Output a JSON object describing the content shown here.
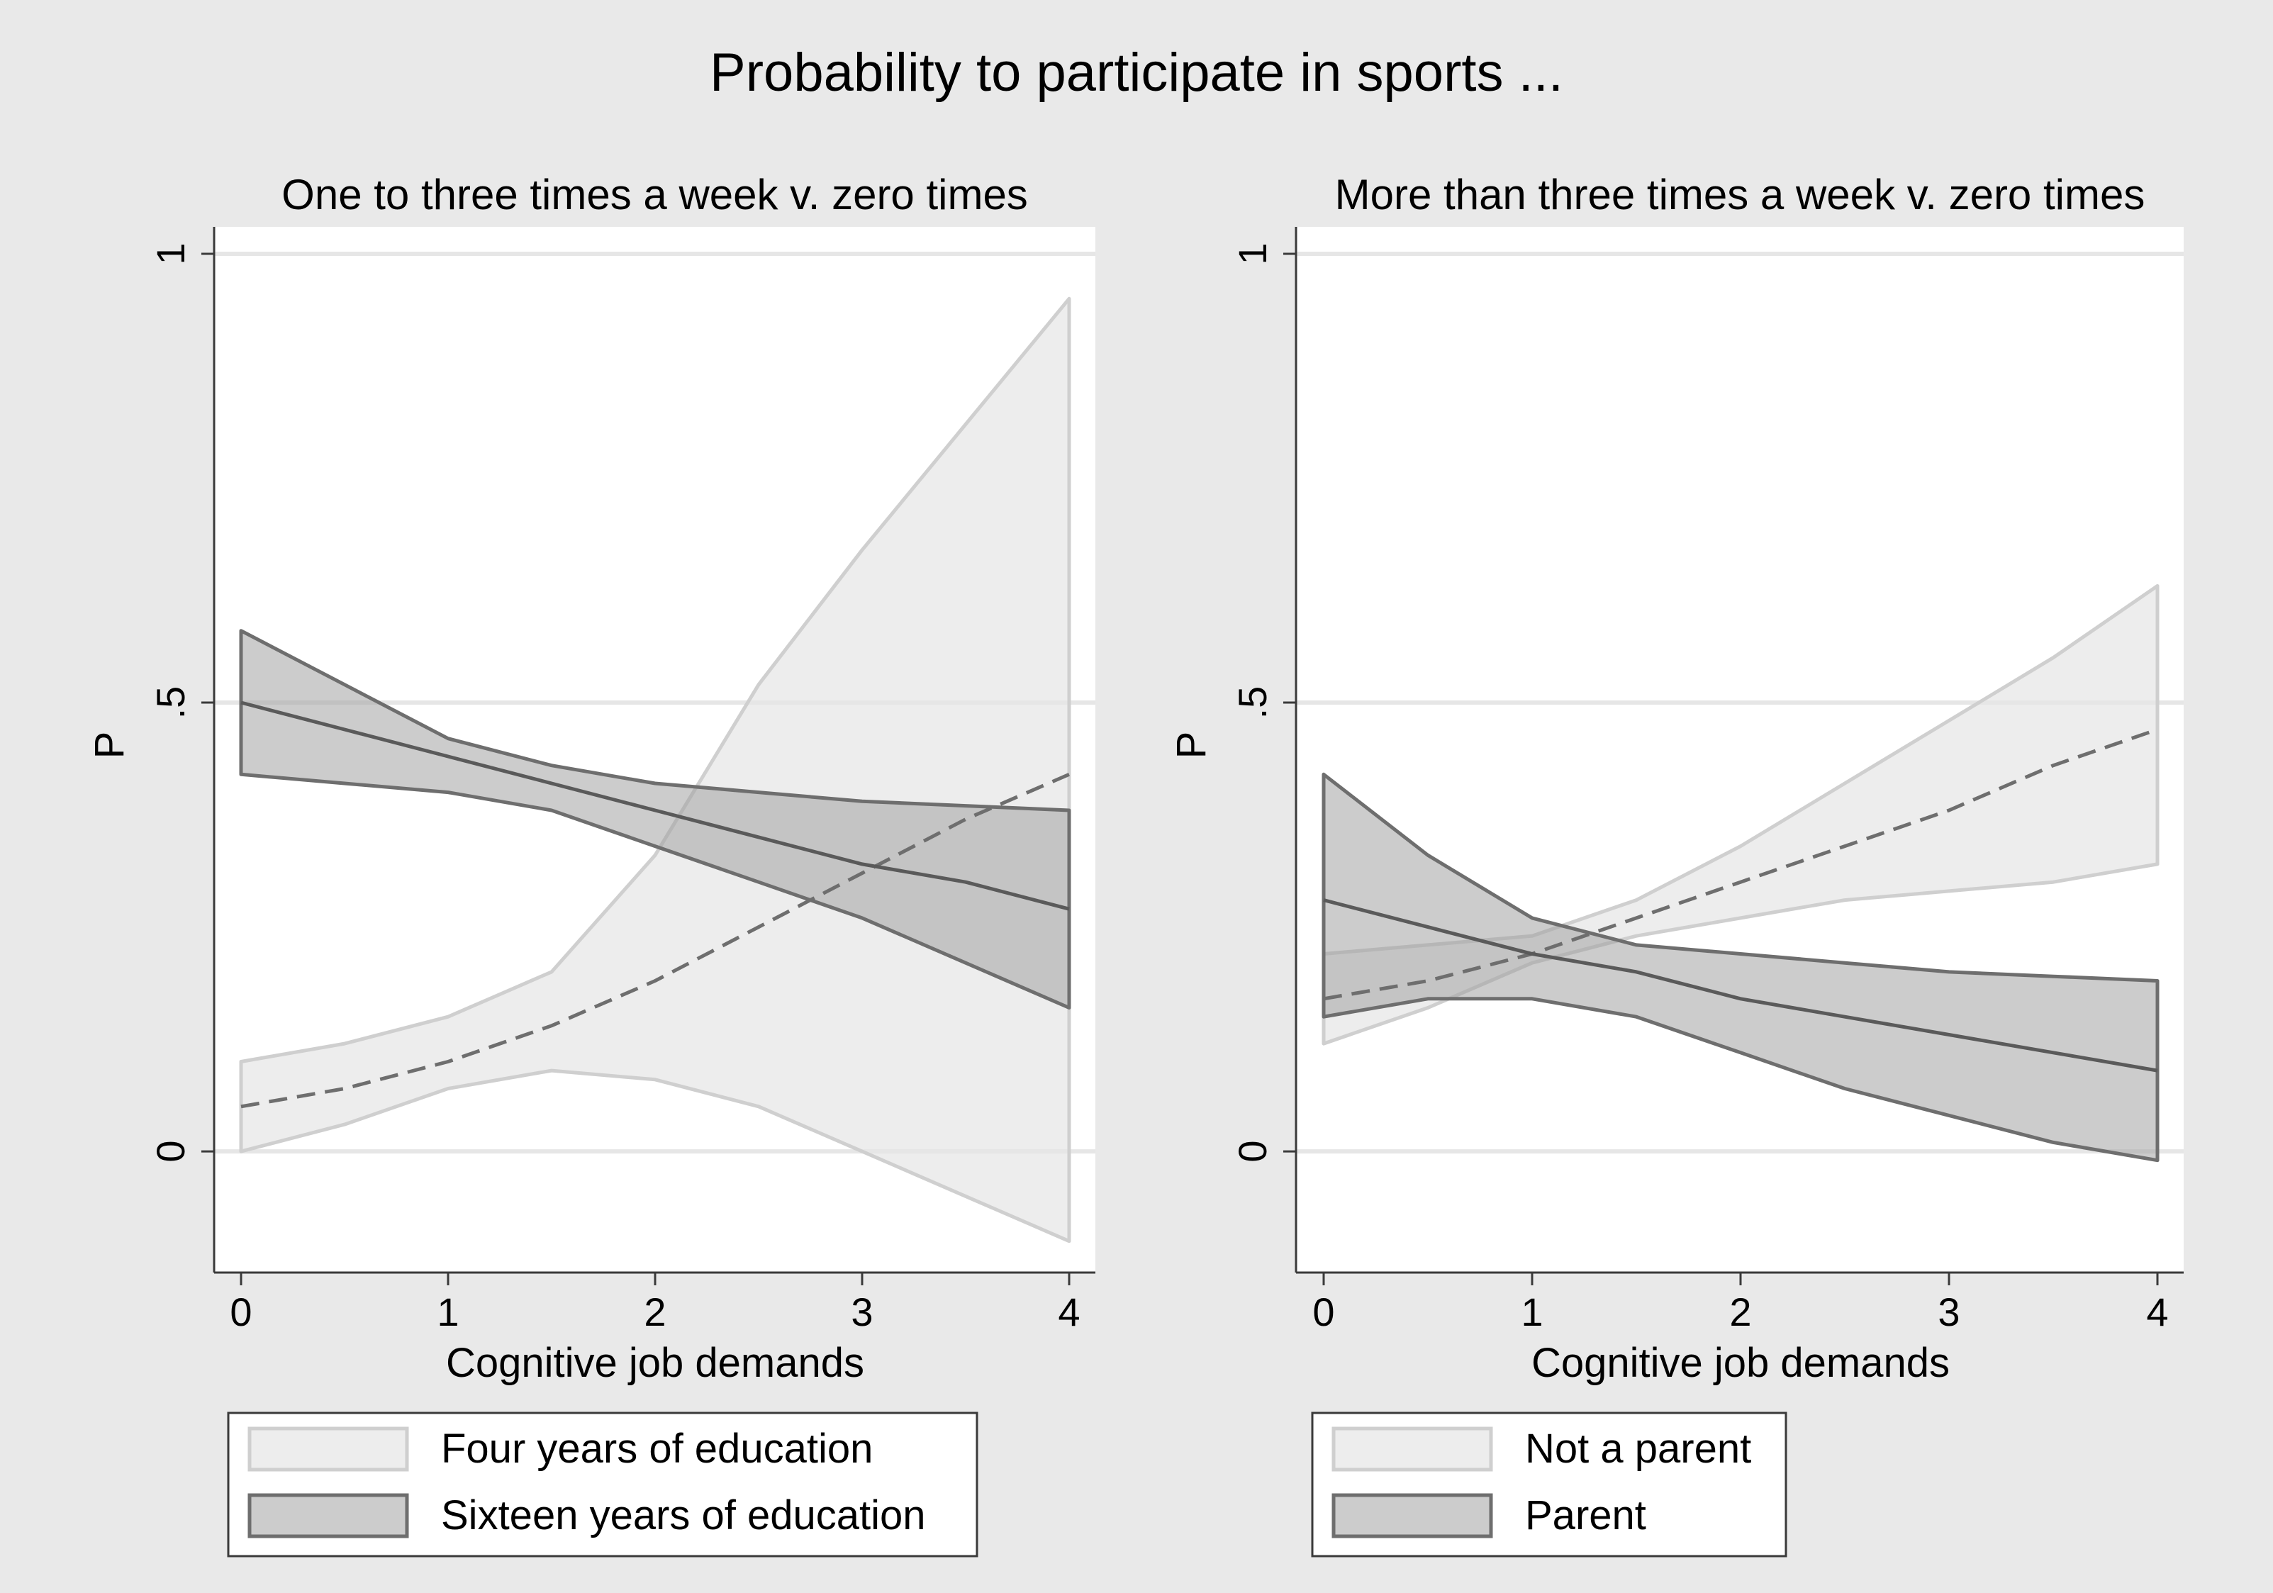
{
  "figure": {
    "title": "Probability to participate in sports ...",
    "colors": {
      "outer_bg": "#e9e9e9",
      "plot_bg": "#ffffff",
      "grid": "#e6e6e6",
      "frame": "#3a3a3a",
      "light_fill": "#e6e6e6",
      "light_stroke": "#cfcfcf",
      "light_line": "#6e6e6e",
      "dark_fill": "#a3a3a3",
      "dark_stroke": "#6e6e6e",
      "dark_line": "#5a5a5a"
    }
  },
  "chart_data": [
    {
      "type": "line",
      "title": "One to three times a week v. zero times",
      "xlabel": "Cognitive job demands",
      "ylabel": "P",
      "xlim": [
        0,
        4
      ],
      "ylim": [
        -0.135,
        1.03
      ],
      "xticks": [
        0,
        1,
        2,
        3,
        4
      ],
      "yticks": [
        {
          "value": 0,
          "label": "0"
        },
        {
          "value": 0.5,
          "label": ".5"
        },
        {
          "value": 1,
          "label": "1"
        }
      ],
      "grid": true,
      "legend_position": "bottom",
      "x": [
        0,
        0.5,
        1,
        1.5,
        2,
        2.5,
        3,
        3.5,
        4
      ],
      "series": [
        {
          "name": "Four years of education",
          "style": "light",
          "line": "dashed",
          "values": [
            0.05,
            0.07,
            0.1,
            0.14,
            0.19,
            0.25,
            0.31,
            0.37,
            0.42
          ],
          "lower": [
            0.0,
            0.03,
            0.07,
            0.09,
            0.08,
            0.05,
            0.0,
            -0.05,
            -0.1
          ],
          "upper": [
            0.1,
            0.12,
            0.15,
            0.2,
            0.33,
            0.52,
            0.67,
            0.81,
            0.95
          ]
        },
        {
          "name": "Sixteen years of education",
          "style": "dark",
          "line": "solid",
          "values": [
            0.5,
            0.47,
            0.44,
            0.41,
            0.38,
            0.35,
            0.32,
            0.3,
            0.27
          ],
          "lower": [
            0.42,
            0.41,
            0.4,
            0.38,
            0.34,
            0.3,
            0.26,
            0.21,
            0.16
          ],
          "upper": [
            0.58,
            0.52,
            0.46,
            0.43,
            0.41,
            0.4,
            0.39,
            0.385,
            0.38
          ]
        }
      ]
    },
    {
      "type": "line",
      "title": "More than three times a week v. zero times",
      "xlabel": "Cognitive job demands",
      "ylabel": "P",
      "xlim": [
        0,
        4
      ],
      "ylim": [
        -0.135,
        1.03
      ],
      "xticks": [
        0,
        1,
        2,
        3,
        4
      ],
      "yticks": [
        {
          "value": 0,
          "label": "0"
        },
        {
          "value": 0.5,
          "label": ".5"
        },
        {
          "value": 1,
          "label": "1"
        }
      ],
      "grid": true,
      "legend_position": "bottom",
      "x": [
        0,
        0.5,
        1,
        1.5,
        2,
        2.5,
        3,
        3.5,
        4
      ],
      "series": [
        {
          "name": "Not a parent",
          "style": "light",
          "line": "dashed",
          "values": [
            0.17,
            0.19,
            0.22,
            0.26,
            0.3,
            0.34,
            0.38,
            0.43,
            0.47
          ],
          "lower": [
            0.12,
            0.16,
            0.21,
            0.24,
            0.26,
            0.28,
            0.29,
            0.3,
            0.32
          ],
          "upper": [
            0.22,
            0.23,
            0.24,
            0.28,
            0.34,
            0.41,
            0.48,
            0.55,
            0.63
          ]
        },
        {
          "name": "Parent",
          "style": "dark",
          "line": "solid",
          "values": [
            0.28,
            0.25,
            0.22,
            0.2,
            0.17,
            0.15,
            0.13,
            0.11,
            0.09
          ],
          "lower": [
            0.15,
            0.17,
            0.17,
            0.15,
            0.11,
            0.07,
            0.04,
            0.01,
            -0.01
          ],
          "upper": [
            0.42,
            0.33,
            0.26,
            0.23,
            0.22,
            0.21,
            0.2,
            0.195,
            0.19
          ]
        }
      ]
    }
  ]
}
